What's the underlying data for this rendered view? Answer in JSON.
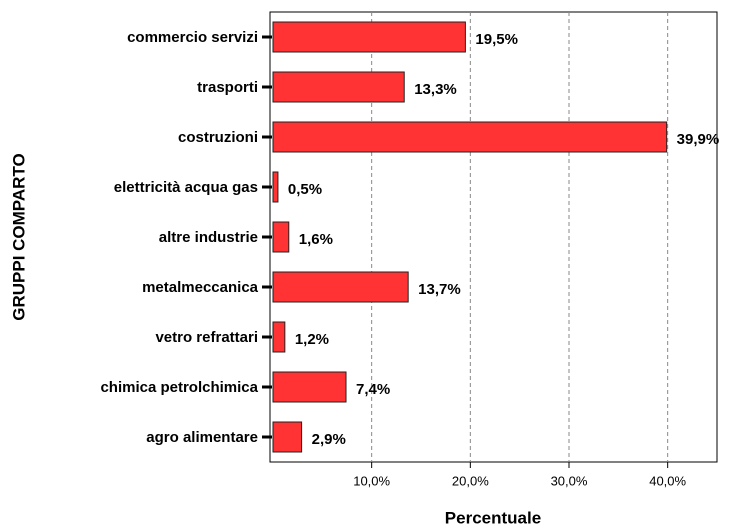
{
  "chart_data": {
    "type": "barh",
    "x_label": "Percentuale",
    "y_label": "GRUPPI COMPARTO",
    "categories": [
      "commercio servizi",
      "trasporti",
      "costruzioni",
      "elettricità acqua gas",
      "altre industrie",
      "metalmeccanica",
      "vetro refrattari",
      "chimica petrolchimica",
      "agro alimentare"
    ],
    "values": [
      19.5,
      13.3,
      39.9,
      0.5,
      1.6,
      13.7,
      1.2,
      7.4,
      2.9
    ],
    "value_labels": [
      "19,5%",
      "13,3%",
      "39,9%",
      "0,5%",
      "1,6%",
      "13,7%",
      "1,2%",
      "7,4%",
      "2,9%"
    ],
    "color": "#ff3333",
    "xlim": [
      0,
      45
    ],
    "xticks": [
      {
        "value": 10,
        "label": "10,0%"
      },
      {
        "value": 20,
        "label": "20,0%"
      },
      {
        "value": 30,
        "label": "30,0%"
      },
      {
        "value": 40,
        "label": "40,0%"
      }
    ],
    "grid": true
  }
}
